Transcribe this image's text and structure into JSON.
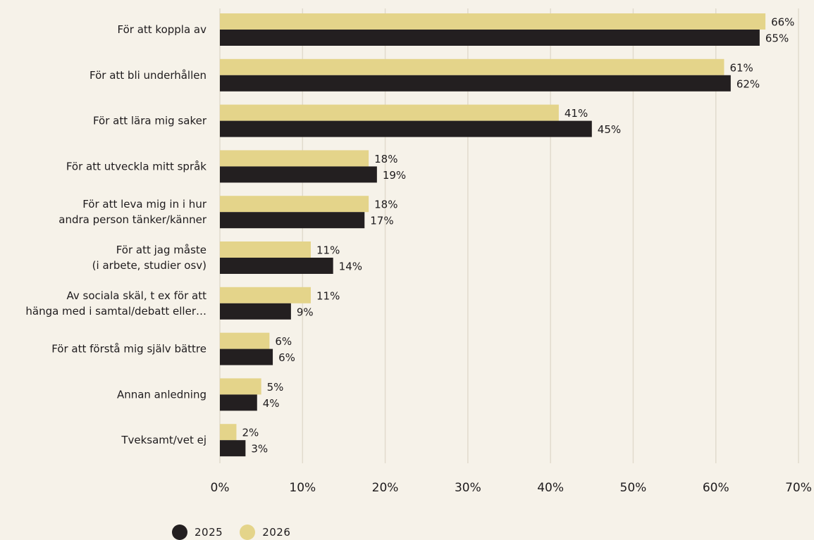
{
  "chart_data": {
    "type": "bar",
    "orientation": "horizontal",
    "categories": [
      [
        "För att koppla av"
      ],
      [
        "För att bli underhållen"
      ],
      [
        "För att lära mig saker"
      ],
      [
        "För att utveckla mitt språk"
      ],
      [
        "För att leva mig in i hur",
        "andra person tänker/känner"
      ],
      [
        "För att jag måste",
        "(i arbete, studier osv)"
      ],
      [
        "Av sociala skäl, t ex för att",
        "hänga med i samtal/debatt eller…"
      ],
      [
        "För att förstå mig själv bättre"
      ],
      [
        "Annan anledning"
      ],
      [
        "Tveksamt/vet ej"
      ]
    ],
    "series": [
      {
        "name": "2026",
        "color": "#e4d48a",
        "values": [
          66,
          61,
          41,
          18,
          18,
          11,
          11,
          6,
          5,
          2
        ],
        "labels": [
          "66%",
          "61%",
          "41%",
          "18%",
          "18%",
          "11%",
          "11%",
          "6%",
          "5%",
          "2%"
        ]
      },
      {
        "name": "2025",
        "color": "#231f20",
        "values": [
          65.3,
          61.8,
          45,
          19,
          17.5,
          13.7,
          8.6,
          6.4,
          4.5,
          3.1
        ],
        "labels": [
          "65%",
          "62%",
          "45%",
          "19%",
          "17%",
          "14%",
          "9%",
          "6%",
          "4%",
          "3%"
        ]
      }
    ],
    "xlim": [
      0,
      70
    ],
    "xticks": [
      "0%",
      "10%",
      "20%",
      "30%",
      "40%",
      "50%",
      "60%",
      "70%"
    ],
    "grid": true,
    "gridColor": "#e1dbcd",
    "legend_position": "bottom-left"
  },
  "legend": [
    {
      "label": "2025",
      "color": "#231f20"
    },
    {
      "label": "2026",
      "color": "#e4d48a"
    }
  ]
}
